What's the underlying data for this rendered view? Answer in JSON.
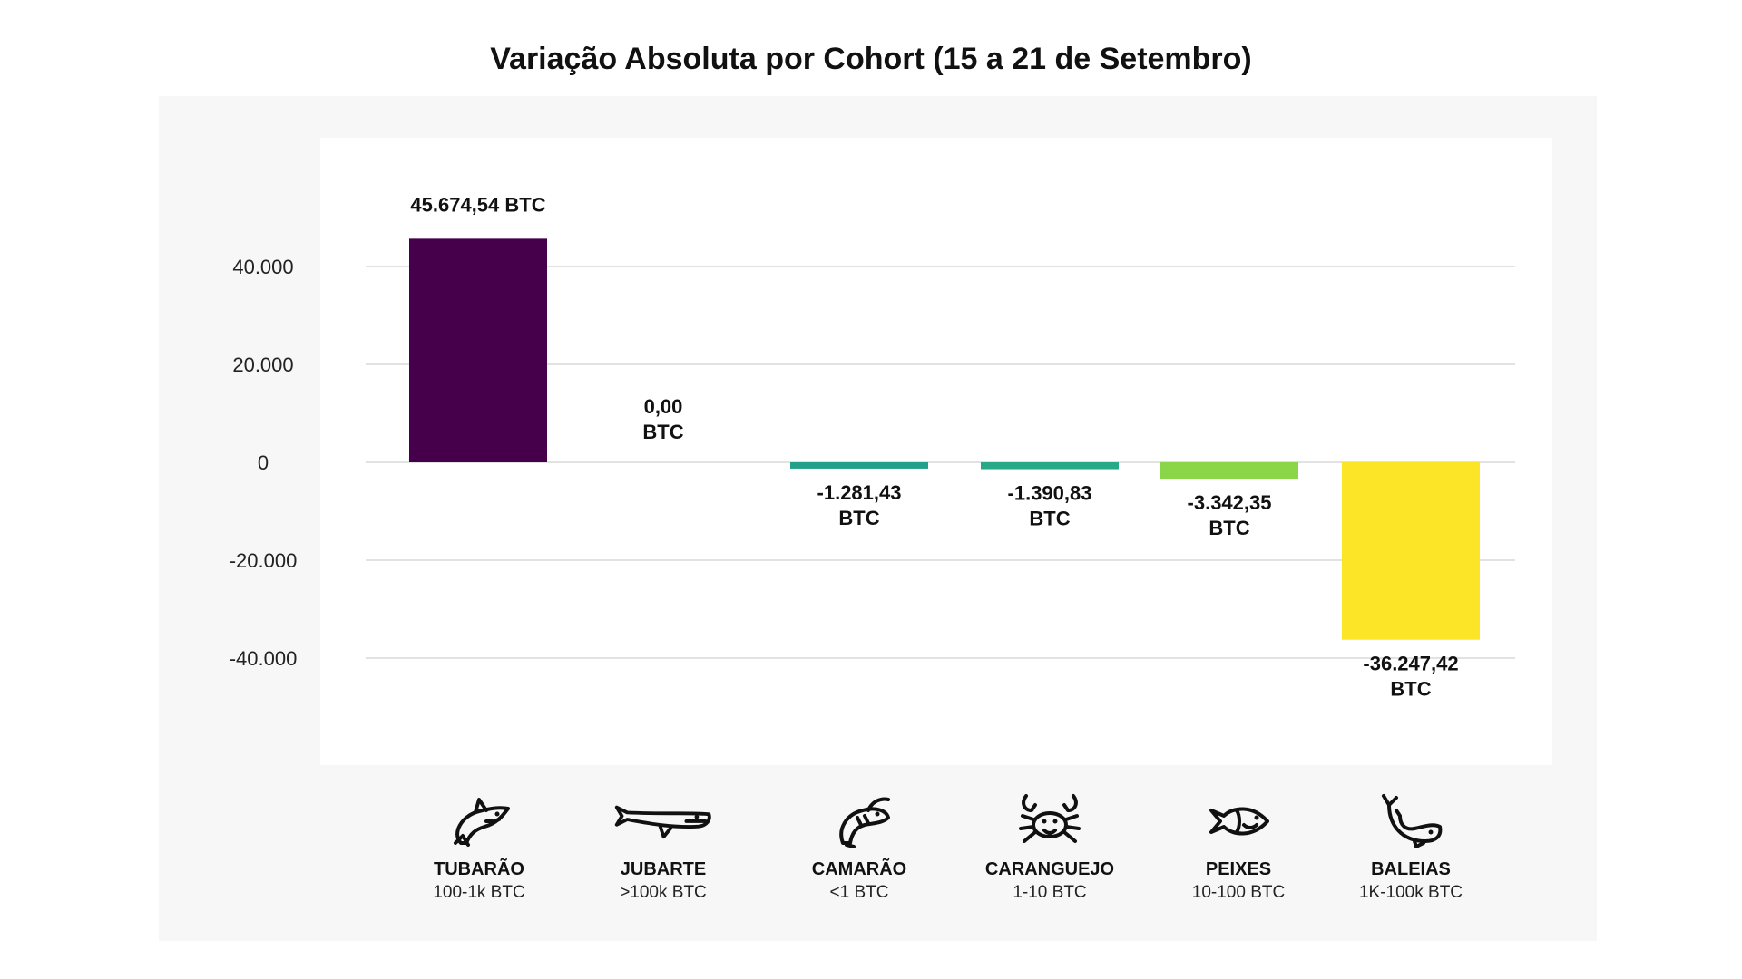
{
  "chart_data": {
    "type": "bar",
    "title": "Variação Absoluta por Cohort (15 a 21 de Setembro)",
    "xlabel": "",
    "ylabel": "",
    "ylim": [
      -47000,
      55000
    ],
    "yticks": [
      40000,
      20000,
      0,
      -20000,
      -40000
    ],
    "ytick_labels": [
      "40.000",
      "20.000",
      "0",
      "-20.000",
      "-40.000"
    ],
    "grid": true,
    "categories": [
      "TUBARÃO",
      "JUBARTE",
      "CAMARÃO",
      "CARANGUEJO",
      "PEIXES",
      "BALEIAS"
    ],
    "subcategories": [
      "100-1k BTC",
      ">100k BTC",
      "<1 BTC",
      "1-10 BTC",
      "10-100 BTC",
      "1K-100k BTC"
    ],
    "values": [
      45674.54,
      0.0,
      -1281.43,
      -1390.83,
      -3342.35,
      -36247.42
    ],
    "value_labels": [
      [
        "45.674,54 BTC"
      ],
      [
        "0,00",
        "BTC"
      ],
      [
        "-1.281,43",
        "BTC"
      ],
      [
        "-1.390,83",
        "BTC"
      ],
      [
        "-3.342,35",
        "BTC"
      ],
      [
        "-36.247,42",
        "BTC"
      ]
    ],
    "colors": [
      "#46004b",
      "#2a9d8f",
      "#239f8a",
      "#27a886",
      "#8bd648",
      "#fce526"
    ],
    "icons": [
      "shark-icon",
      "humpback-whale-icon",
      "shrimp-icon",
      "crab-icon",
      "fish-icon",
      "whale-icon"
    ]
  }
}
